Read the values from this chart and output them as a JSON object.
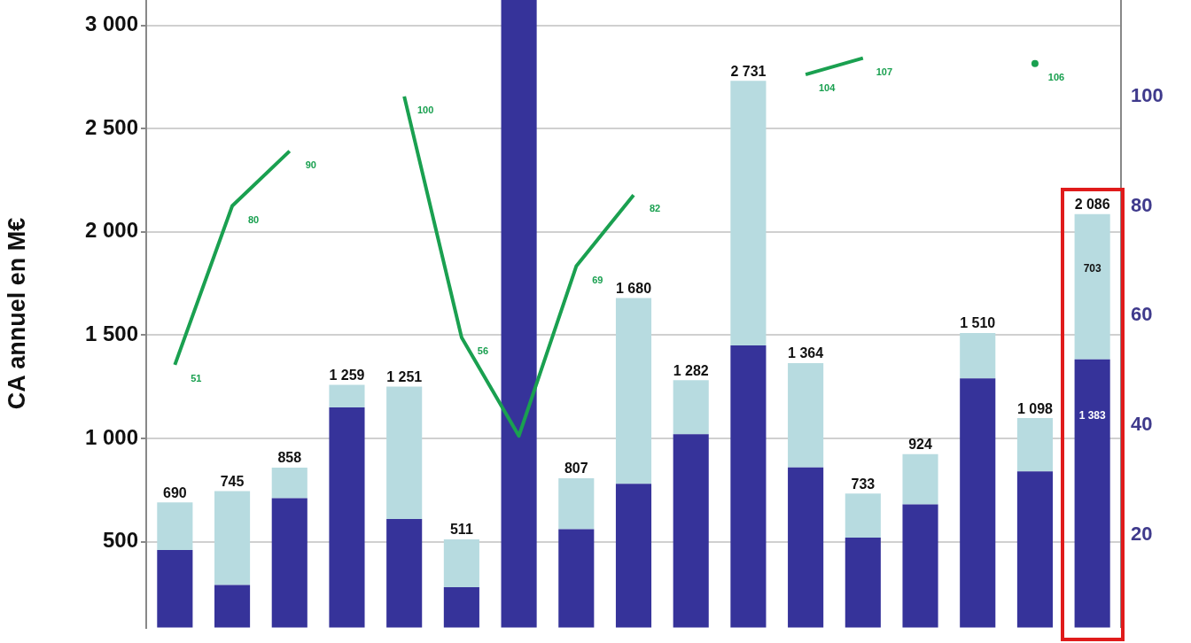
{
  "chart_data": {
    "type": "bar",
    "ylabel": "CA annuel en M€",
    "categories": [
      null,
      null,
      null,
      null,
      null,
      null,
      null,
      null,
      null,
      null,
      null,
      null,
      null,
      null,
      null,
      null,
      null
    ],
    "stacked": true,
    "series": [
      {
        "color": "#36339a",
        "values": [
          460,
          290,
          710,
          1150,
          610,
          280,
          3125,
          560,
          780,
          1020,
          1450,
          860,
          520,
          680,
          1290,
          840,
          1383
        ],
        "value_labels": [
          null,
          null,
          null,
          null,
          null,
          null,
          null,
          null,
          null,
          null,
          null,
          null,
          null,
          null,
          null,
          null,
          "1 383"
        ]
      },
      {
        "color": "#b7dbe0",
        "values": [
          230,
          455,
          148,
          109,
          641,
          231,
          null,
          247,
          900,
          262,
          1281,
          504,
          213,
          244,
          220,
          258,
          703
        ],
        "value_labels": [
          null,
          null,
          null,
          null,
          null,
          null,
          null,
          null,
          null,
          null,
          null,
          null,
          null,
          null,
          null,
          null,
          "703"
        ]
      },
      {
        "type": "line",
        "axis": "y2",
        "color": "#1aa050",
        "values": [
          51,
          80,
          90,
          null,
          100,
          56,
          38,
          69,
          82,
          null,
          null,
          104,
          107,
          null,
          null,
          106,
          null
        ],
        "value_labels": [
          "51",
          "80",
          "90",
          null,
          "100",
          "56",
          null,
          "69",
          "82",
          null,
          null,
          "104",
          "107",
          null,
          null,
          "106",
          null
        ]
      }
    ],
    "totals": [
      "690",
      "745",
      "858",
      "1 259",
      "1 251",
      "511",
      null,
      "807",
      "1 680",
      "1 282",
      "2 731",
      "1 364",
      "733",
      "924",
      "1 510",
      "1 098",
      "2 086"
    ],
    "ylim": [
      84,
      3125
    ],
    "yticks": [
      {
        "value": 500,
        "label": "500"
      },
      {
        "value": 1000,
        "label": "1 000"
      },
      {
        "value": 1500,
        "label": "1 500"
      },
      {
        "value": 2000,
        "label": "2 000"
      },
      {
        "value": 2500,
        "label": "2 500"
      },
      {
        "value": 3000,
        "label": "3 000"
      }
    ],
    "y2lim": [
      3,
      117.7
    ],
    "y2ticks": [
      20,
      40,
      60,
      80,
      100
    ],
    "grid": "y",
    "marker": "none"
  }
}
